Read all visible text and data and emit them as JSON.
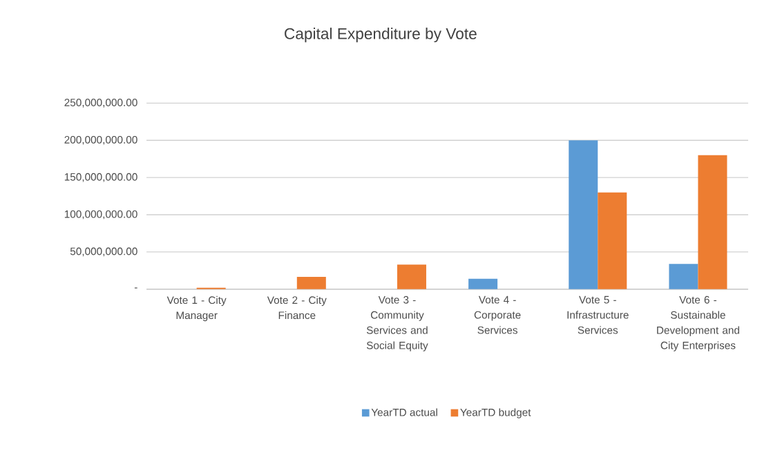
{
  "chart_data": {
    "type": "bar",
    "title": "Capital Expenditure by Vote",
    "categories": [
      "Vote 1 - City Manager",
      "Vote 2 - City Finance",
      "Vote 3 - Community Services and Social Equity",
      "Vote 4 - Corporate Services",
      "Vote 5 - Infrastructure Services",
      "Vote 6 - Sustainable Development and City Enterprises"
    ],
    "series": [
      {
        "name": "YearTD actual",
        "color": "#5b9bd5",
        "values": [
          0,
          0,
          0,
          14000000,
          200000000,
          34000000
        ]
      },
      {
        "name": "YearTD budget",
        "color": "#ed7d31",
        "values": [
          2000000,
          16500000,
          33000000,
          0,
          130000000,
          180000000
        ]
      }
    ],
    "ylim": [
      0,
      250000000
    ],
    "yticks": [
      {
        "value": 0,
        "label": "-"
      },
      {
        "value": 50000000,
        "label": "50,000,000.00"
      },
      {
        "value": 100000000,
        "label": "100,000,000.00"
      },
      {
        "value": 150000000,
        "label": "150,000,000.00"
      },
      {
        "value": 200000000,
        "label": "200,000,000.00"
      },
      {
        "value": 250000000,
        "label": "250,000,000.00"
      }
    ],
    "grid": "y",
    "legend": "bottom"
  }
}
